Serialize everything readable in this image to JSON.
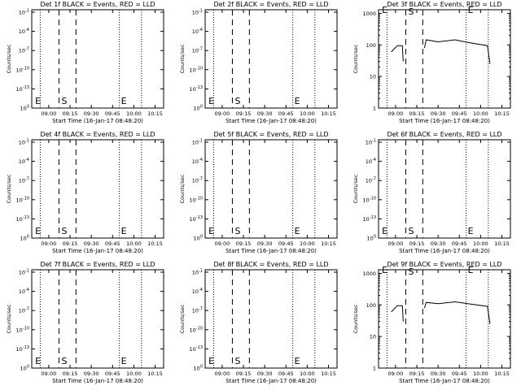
{
  "chart_data": [
    {
      "type": "line",
      "title": "Det 1f BLACK = Events, RED = LLD",
      "xlabel": "Start Time (16-Jan-17 08:48:20)",
      "ylabel": "Counts/sec",
      "x_ticks": [
        "09:00",
        "09:15",
        "09:30",
        "09:45",
        "10:00",
        "10:15"
      ],
      "y_scale": "log",
      "y_ticks": [
        "10⁰",
        "10⁻¹³",
        "10⁻¹⁰",
        "10⁻⁷",
        "10⁻⁴",
        "10⁻¹"
      ],
      "y_tick_mantissa": "10",
      "y_tick_exponents": [
        "0",
        "-13",
        "-10",
        "-7",
        "-4",
        "-1"
      ],
      "markers": [
        "E",
        "S",
        "E"
      ],
      "series": []
    },
    {
      "type": "line",
      "title": "Det 2f BLACK = Events, RED = LLD",
      "xlabel": "Start Time (16-Jan-17 08:48:20)",
      "ylabel": "Counts/sec",
      "x_ticks": [
        "09:00",
        "09:15",
        "09:30",
        "09:45",
        "10:00",
        "10:15"
      ],
      "y_scale": "log",
      "y_ticks": [
        "10⁰",
        "10⁻¹³",
        "10⁻¹⁰",
        "10⁻⁷",
        "10⁻⁴",
        "10⁻¹"
      ],
      "y_tick_mantissa": "10",
      "y_tick_exponents": [
        "0",
        "-13",
        "-10",
        "-7",
        "-4",
        "-1"
      ],
      "markers": [
        "E",
        "S",
        "E"
      ],
      "series": []
    },
    {
      "type": "line",
      "title": "Det 3f BLACK = Events, RED = LLD",
      "xlabel": "Start Time (16-Jan-17 08:48:20)",
      "ylabel": "Counts/sec",
      "x_ticks": [
        "09:00",
        "09:15",
        "09:30",
        "09:45",
        "10:00",
        "10:15"
      ],
      "y_scale": "log",
      "y_ticks": [
        "1",
        "10",
        "100",
        "1000"
      ],
      "markers": [
        "E",
        "S",
        "E"
      ],
      "series": [
        {
          "color": "#000000",
          "segments": [
            [
              [
                8.95,
                60
              ],
              [
                9.02,
                95
              ],
              [
                9.08,
                95
              ],
              [
                9.09,
                30
              ]
            ],
            [
              [
                9.34,
                80
              ],
              [
                9.36,
                145
              ],
              [
                9.5,
                125
              ],
              [
                9.7,
                145
              ],
              [
                9.85,
                120
              ],
              [
                10.08,
                95
              ],
              [
                10.11,
                25
              ]
            ]
          ]
        }
      ]
    },
    {
      "type": "line",
      "title": "Det 4f BLACK = Events, RED = LLD",
      "xlabel": "Start Time (16-Jan-17 08:48:20)",
      "ylabel": "Counts/sec",
      "x_ticks": [
        "09:00",
        "09:15",
        "09:30",
        "09:45",
        "10:00",
        "10:15"
      ],
      "y_scale": "log",
      "y_ticks": [
        "10⁰",
        "10⁻¹³",
        "10⁻¹⁰",
        "10⁻⁷",
        "10⁻⁴",
        "10⁻¹"
      ],
      "y_tick_mantissa": "10",
      "y_tick_exponents": [
        "0",
        "-13",
        "-10",
        "-7",
        "-4",
        "-1"
      ],
      "markers": [
        "E",
        "S",
        "E"
      ],
      "series": []
    },
    {
      "type": "line",
      "title": "Det 5f BLACK = Events, RED = LLD",
      "xlabel": "Start Time (16-Jan-17 08:48:20)",
      "ylabel": "Counts/sec",
      "x_ticks": [
        "09:00",
        "09:15",
        "09:30",
        "09:45",
        "10:00",
        "10:15"
      ],
      "y_scale": "log",
      "y_ticks": [
        "10⁰",
        "10⁻¹³",
        "10⁻¹⁰",
        "10⁻⁷",
        "10⁻⁴",
        "10⁻¹"
      ],
      "y_tick_mantissa": "10",
      "y_tick_exponents": [
        "0",
        "-13",
        "-10",
        "-7",
        "-4",
        "-1"
      ],
      "markers": [
        "E",
        "S",
        "E"
      ],
      "series": []
    },
    {
      "type": "line",
      "title": "Det 6f BLACK = Events, RED = LLD",
      "xlabel": "Start Time (16-Jan-17 08:48:20)",
      "ylabel": "Counts/sec",
      "x_ticks": [
        "09:00",
        "09:15",
        "09:30",
        "09:45",
        "10:00",
        "10:15"
      ],
      "y_scale": "log",
      "y_ticks": [
        "10⁰",
        "10⁻¹³",
        "10⁻¹⁰",
        "10⁻⁷",
        "10⁻⁴",
        "10⁻¹"
      ],
      "y_tick_mantissa": "10",
      "y_tick_exponents": [
        "0",
        "-13",
        "-10",
        "-7",
        "-4",
        "-1"
      ],
      "markers": [
        "E",
        "S",
        "E"
      ],
      "series": []
    },
    {
      "type": "line",
      "title": "Det 7f BLACK = Events, RED = LLD",
      "xlabel": "Start Time (16-Jan-17 08:48:20)",
      "ylabel": "Counts/sec",
      "x_ticks": [
        "09:00",
        "09:15",
        "09:30",
        "09:45",
        "10:00",
        "10:15"
      ],
      "y_scale": "log",
      "y_ticks": [
        "10⁰",
        "10⁻¹³",
        "10⁻¹⁰",
        "10⁻⁷",
        "10⁻⁴",
        "10⁻¹"
      ],
      "y_tick_mantissa": "10",
      "y_tick_exponents": [
        "0",
        "-13",
        "-10",
        "-7",
        "-4",
        "-1"
      ],
      "markers": [
        "E",
        "S",
        "E"
      ],
      "series": []
    },
    {
      "type": "line",
      "title": "Det 8f BLACK = Events, RED = LLD",
      "xlabel": "Start Time (16-Jan-17 08:48:20)",
      "ylabel": "Counts/sec",
      "x_ticks": [
        "09:00",
        "09:15",
        "09:30",
        "09:45",
        "10:00",
        "10:15"
      ],
      "y_scale": "log",
      "y_ticks": [
        "10⁰",
        "10⁻¹³",
        "10⁻¹⁰",
        "10⁻⁷",
        "10⁻⁴",
        "10⁻¹"
      ],
      "y_tick_mantissa": "10",
      "y_tick_exponents": [
        "0",
        "-13",
        "-10",
        "-7",
        "-4",
        "-1"
      ],
      "markers": [
        "E",
        "S",
        "E"
      ],
      "series": []
    },
    {
      "type": "line",
      "title": "Det 9f BLACK = Events, RED = LLD",
      "xlabel": "Start Time (16-Jan-17 08:48:20)",
      "ylabel": "Counts/sec",
      "x_ticks": [
        "09:00",
        "09:15",
        "09:30",
        "09:45",
        "10:00",
        "10:15"
      ],
      "y_scale": "log",
      "y_ticks": [
        "1",
        "10",
        "100",
        "1000"
      ],
      "markers": [
        "E",
        "S",
        "E"
      ],
      "series": [
        {
          "color": "#000000",
          "segments": [
            [
              [
                8.95,
                60
              ],
              [
                9.02,
                95
              ],
              [
                9.08,
                95
              ],
              [
                9.09,
                30
              ]
            ],
            [
              [
                9.34,
                80
              ],
              [
                9.36,
                120
              ],
              [
                9.5,
                110
              ],
              [
                9.7,
                125
              ],
              [
                9.85,
                110
              ],
              [
                10.08,
                90
              ],
              [
                10.11,
                25
              ]
            ]
          ]
        }
      ]
    }
  ]
}
